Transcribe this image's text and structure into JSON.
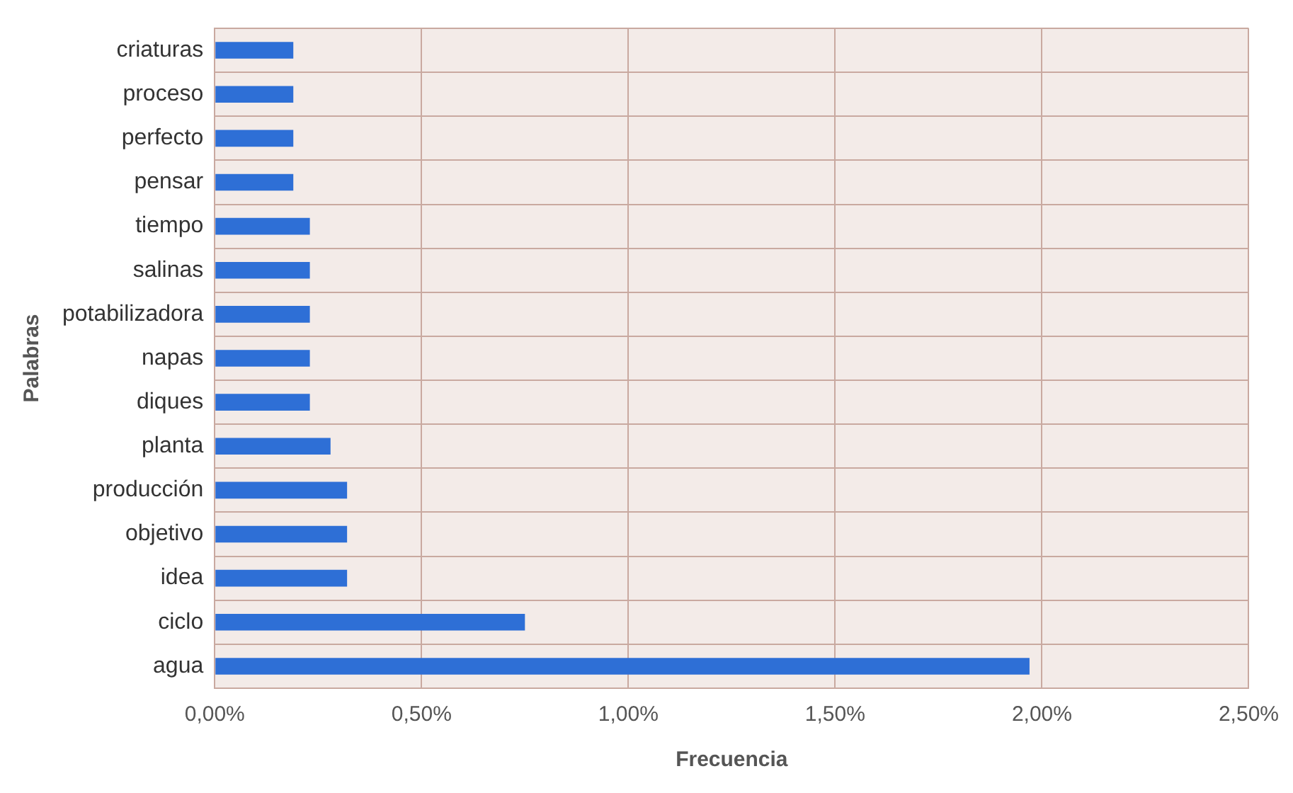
{
  "chart_data": {
    "type": "bar",
    "orientation": "horizontal",
    "xlabel": "Frecuencia",
    "ylabel": "Palabras",
    "categories": [
      "criaturas",
      "proceso",
      "perfecto",
      "pensar",
      "tiempo",
      "salinas",
      "potabilizadora",
      "napas",
      "diques",
      "planta",
      "producción",
      "objetivo",
      "idea",
      "ciclo",
      "agua"
    ],
    "values": [
      0.19,
      0.19,
      0.19,
      0.19,
      0.23,
      0.23,
      0.23,
      0.23,
      0.23,
      0.28,
      0.32,
      0.32,
      0.32,
      0.75,
      1.97
    ],
    "color": "#2e6fd6",
    "xlim": [
      0,
      2.5
    ],
    "xticks": [
      {
        "value": 0,
        "label": "0,00%"
      },
      {
        "value": 0.5,
        "label": "0,50%"
      },
      {
        "value": 1,
        "label": "1,00%"
      },
      {
        "value": 1.5,
        "label": "1,50%"
      },
      {
        "value": 2,
        "label": "2,00%"
      },
      {
        "value": 2.5,
        "label": "2,50%"
      }
    ],
    "grid": true,
    "legend": false
  }
}
